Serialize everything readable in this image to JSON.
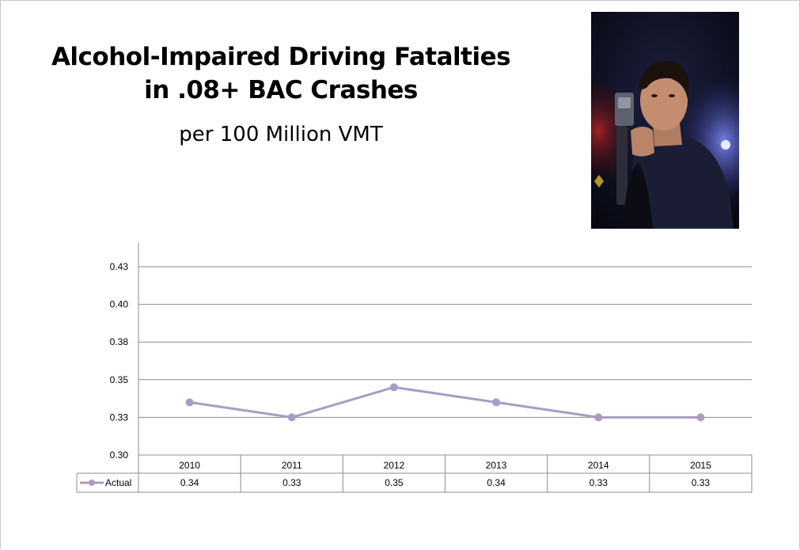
{
  "slide": {
    "title_line1": "Alcohol-Impaired Driving Fatalties",
    "title_line2": "in .08+ BAC Crashes",
    "subtitle": "per 100 Million VMT"
  },
  "photo": {
    "icon": "person-breathalyzer-photo"
  },
  "chart_data": {
    "type": "line",
    "categories": [
      "2010",
      "2011",
      "2012",
      "2013",
      "2014",
      "2015"
    ],
    "series": [
      {
        "name": "Actual",
        "values": [
          0.34,
          0.33,
          0.35,
          0.34,
          0.33,
          0.33
        ],
        "display_labels": [
          "0.34",
          "0.33",
          "0.35",
          "0.34",
          "0.33",
          "0.33"
        ],
        "color": "#a99cc1"
      }
    ],
    "y_ticks": [
      {
        "value": 0.3,
        "label": "0.30"
      },
      {
        "value": 0.325,
        "label": "0.33"
      },
      {
        "value": 0.35,
        "label": "0.35"
      },
      {
        "value": 0.375,
        "label": "0.38"
      },
      {
        "value": 0.4,
        "label": "0.40"
      },
      {
        "value": 0.425,
        "label": "0.43"
      }
    ],
    "ylim": [
      0.3,
      0.425
    ],
    "grid": true,
    "legend": "data-table",
    "plotted_values": [
      0.335,
      0.325,
      0.345,
      0.335,
      0.325,
      0.325
    ]
  }
}
